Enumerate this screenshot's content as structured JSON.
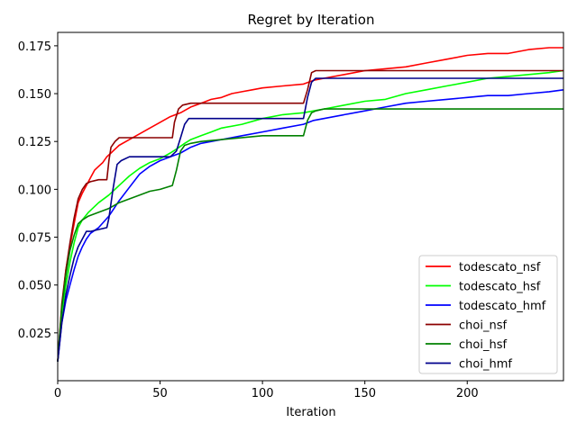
{
  "chart_data": {
    "type": "line",
    "title": "Regret by Iteration",
    "xlabel": "Iteration",
    "ylabel": "",
    "xlim": [
      0,
      247
    ],
    "ylim": [
      0.0,
      0.182
    ],
    "xticks": [
      0,
      50,
      100,
      150,
      200
    ],
    "yticks": [
      0.025,
      0.05,
      0.075,
      0.1,
      0.125,
      0.15,
      0.175
    ],
    "ytick_labels": [
      "0.025",
      "0.050",
      "0.075",
      "0.100",
      "0.125",
      "0.150",
      "0.175"
    ],
    "grid": false,
    "legend_position": "lower-right",
    "series": [
      {
        "name": "todescato_nsf",
        "color": "#ff0000",
        "points": [
          [
            0,
            0.01
          ],
          [
            2,
            0.038
          ],
          [
            4,
            0.058
          ],
          [
            6,
            0.07
          ],
          [
            8,
            0.082
          ],
          [
            10,
            0.093
          ],
          [
            12,
            0.098
          ],
          [
            14,
            0.102
          ],
          [
            16,
            0.106
          ],
          [
            18,
            0.11
          ],
          [
            20,
            0.112
          ],
          [
            22,
            0.114
          ],
          [
            24,
            0.117
          ],
          [
            26,
            0.119
          ],
          [
            28,
            0.121
          ],
          [
            30,
            0.123
          ],
          [
            35,
            0.126
          ],
          [
            40,
            0.129
          ],
          [
            45,
            0.132
          ],
          [
            50,
            0.135
          ],
          [
            55,
            0.138
          ],
          [
            60,
            0.14
          ],
          [
            65,
            0.143
          ],
          [
            70,
            0.145
          ],
          [
            75,
            0.147
          ],
          [
            80,
            0.148
          ],
          [
            85,
            0.15
          ],
          [
            90,
            0.151
          ],
          [
            95,
            0.152
          ],
          [
            100,
            0.153
          ],
          [
            110,
            0.154
          ],
          [
            120,
            0.155
          ],
          [
            125,
            0.157
          ],
          [
            130,
            0.158
          ],
          [
            140,
            0.16
          ],
          [
            150,
            0.162
          ],
          [
            160,
            0.163
          ],
          [
            170,
            0.164
          ],
          [
            180,
            0.166
          ],
          [
            190,
            0.168
          ],
          [
            200,
            0.17
          ],
          [
            210,
            0.171
          ],
          [
            220,
            0.171
          ],
          [
            230,
            0.173
          ],
          [
            240,
            0.174
          ],
          [
            247,
            0.174
          ]
        ]
      },
      {
        "name": "todescato_hsf",
        "color": "#00ff00",
        "points": [
          [
            0,
            0.01
          ],
          [
            2,
            0.035
          ],
          [
            4,
            0.05
          ],
          [
            6,
            0.062
          ],
          [
            8,
            0.072
          ],
          [
            10,
            0.08
          ],
          [
            12,
            0.084
          ],
          [
            15,
            0.088
          ],
          [
            20,
            0.093
          ],
          [
            25,
            0.097
          ],
          [
            30,
            0.102
          ],
          [
            35,
            0.107
          ],
          [
            40,
            0.111
          ],
          [
            45,
            0.114
          ],
          [
            50,
            0.116
          ],
          [
            55,
            0.119
          ],
          [
            58,
            0.121
          ],
          [
            62,
            0.124
          ],
          [
            65,
            0.126
          ],
          [
            70,
            0.128
          ],
          [
            75,
            0.13
          ],
          [
            80,
            0.132
          ],
          [
            90,
            0.134
          ],
          [
            100,
            0.137
          ],
          [
            110,
            0.139
          ],
          [
            120,
            0.14
          ],
          [
            125,
            0.141
          ],
          [
            130,
            0.142
          ],
          [
            140,
            0.144
          ],
          [
            150,
            0.146
          ],
          [
            160,
            0.147
          ],
          [
            170,
            0.15
          ],
          [
            180,
            0.152
          ],
          [
            190,
            0.154
          ],
          [
            200,
            0.156
          ],
          [
            210,
            0.158
          ],
          [
            220,
            0.159
          ],
          [
            230,
            0.16
          ],
          [
            240,
            0.161
          ],
          [
            247,
            0.162
          ]
        ]
      },
      {
        "name": "todescato_hmf",
        "color": "#0000ff",
        "points": [
          [
            0,
            0.01
          ],
          [
            2,
            0.03
          ],
          [
            4,
            0.042
          ],
          [
            6,
            0.05
          ],
          [
            8,
            0.058
          ],
          [
            10,
            0.065
          ],
          [
            12,
            0.07
          ],
          [
            14,
            0.074
          ],
          [
            16,
            0.077
          ],
          [
            20,
            0.08
          ],
          [
            25,
            0.086
          ],
          [
            30,
            0.094
          ],
          [
            35,
            0.101
          ],
          [
            40,
            0.108
          ],
          [
            45,
            0.112
          ],
          [
            50,
            0.115
          ],
          [
            55,
            0.117
          ],
          [
            60,
            0.119
          ],
          [
            65,
            0.122
          ],
          [
            70,
            0.124
          ],
          [
            80,
            0.126
          ],
          [
            90,
            0.128
          ],
          [
            100,
            0.13
          ],
          [
            110,
            0.132
          ],
          [
            120,
            0.134
          ],
          [
            125,
            0.136
          ],
          [
            130,
            0.137
          ],
          [
            140,
            0.139
          ],
          [
            150,
            0.141
          ],
          [
            160,
            0.143
          ],
          [
            170,
            0.145
          ],
          [
            180,
            0.146
          ],
          [
            190,
            0.147
          ],
          [
            200,
            0.148
          ],
          [
            210,
            0.149
          ],
          [
            220,
            0.149
          ],
          [
            230,
            0.15
          ],
          [
            240,
            0.151
          ],
          [
            247,
            0.152
          ]
        ]
      },
      {
        "name": "choi_nsf",
        "color": "#8b0000",
        "points": [
          [
            0,
            0.01
          ],
          [
            2,
            0.04
          ],
          [
            4,
            0.058
          ],
          [
            6,
            0.072
          ],
          [
            8,
            0.085
          ],
          [
            10,
            0.095
          ],
          [
            12,
            0.1
          ],
          [
            14,
            0.103
          ],
          [
            16,
            0.104
          ],
          [
            20,
            0.105
          ],
          [
            24,
            0.105
          ],
          [
            25,
            0.115
          ],
          [
            26,
            0.122
          ],
          [
            28,
            0.125
          ],
          [
            30,
            0.127
          ],
          [
            35,
            0.127
          ],
          [
            45,
            0.127
          ],
          [
            55,
            0.127
          ],
          [
            56,
            0.127
          ],
          [
            57,
            0.135
          ],
          [
            59,
            0.142
          ],
          [
            61,
            0.144
          ],
          [
            65,
            0.145
          ],
          [
            80,
            0.145
          ],
          [
            100,
            0.145
          ],
          [
            120,
            0.145
          ],
          [
            122,
            0.152
          ],
          [
            124,
            0.161
          ],
          [
            126,
            0.162
          ],
          [
            150,
            0.162
          ],
          [
            200,
            0.162
          ],
          [
            247,
            0.162
          ]
        ]
      },
      {
        "name": "choi_hsf",
        "color": "#008000",
        "points": [
          [
            0,
            0.01
          ],
          [
            2,
            0.038
          ],
          [
            4,
            0.055
          ],
          [
            6,
            0.068
          ],
          [
            8,
            0.076
          ],
          [
            10,
            0.082
          ],
          [
            12,
            0.084
          ],
          [
            15,
            0.086
          ],
          [
            20,
            0.088
          ],
          [
            25,
            0.09
          ],
          [
            30,
            0.093
          ],
          [
            35,
            0.095
          ],
          [
            40,
            0.097
          ],
          [
            45,
            0.099
          ],
          [
            50,
            0.1
          ],
          [
            56,
            0.102
          ],
          [
            58,
            0.11
          ],
          [
            60,
            0.12
          ],
          [
            62,
            0.123
          ],
          [
            65,
            0.124
          ],
          [
            70,
            0.125
          ],
          [
            80,
            0.126
          ],
          [
            100,
            0.128
          ],
          [
            120,
            0.128
          ],
          [
            122,
            0.136
          ],
          [
            124,
            0.14
          ],
          [
            126,
            0.141
          ],
          [
            130,
            0.142
          ],
          [
            150,
            0.142
          ],
          [
            200,
            0.142
          ],
          [
            247,
            0.142
          ]
        ]
      },
      {
        "name": "choi_hmf",
        "color": "#00008b",
        "points": [
          [
            0,
            0.01
          ],
          [
            2,
            0.03
          ],
          [
            4,
            0.045
          ],
          [
            6,
            0.055
          ],
          [
            8,
            0.064
          ],
          [
            10,
            0.07
          ],
          [
            12,
            0.074
          ],
          [
            14,
            0.078
          ],
          [
            16,
            0.078
          ],
          [
            20,
            0.079
          ],
          [
            24,
            0.08
          ],
          [
            25,
            0.085
          ],
          [
            27,
            0.1
          ],
          [
            29,
            0.113
          ],
          [
            31,
            0.115
          ],
          [
            35,
            0.117
          ],
          [
            45,
            0.117
          ],
          [
            55,
            0.117
          ],
          [
            58,
            0.12
          ],
          [
            60,
            0.127
          ],
          [
            62,
            0.134
          ],
          [
            64,
            0.137
          ],
          [
            70,
            0.137
          ],
          [
            100,
            0.137
          ],
          [
            120,
            0.137
          ],
          [
            122,
            0.148
          ],
          [
            124,
            0.156
          ],
          [
            126,
            0.158
          ],
          [
            150,
            0.158
          ],
          [
            200,
            0.158
          ],
          [
            247,
            0.158
          ]
        ]
      }
    ]
  }
}
